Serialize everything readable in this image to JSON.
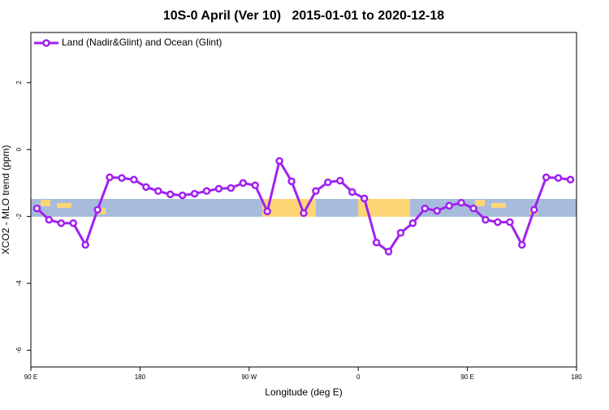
{
  "chart_data": {
    "type": "line",
    "title": "10S-0 April (Ver 10)   2015-01-01 to 2020-12-18",
    "x_label": "Longitude (deg E)",
    "y_label": "XCO2 - MLO trend (ppm)",
    "x": [
      95,
      105,
      115,
      125,
      135,
      145,
      155,
      165,
      175,
      185,
      195,
      205,
      215,
      225,
      235,
      245,
      255,
      265,
      275,
      285,
      295,
      305,
      315,
      325,
      335,
      345,
      355,
      365,
      375,
      385,
      395,
      405,
      415,
      425,
      435,
      445,
      455,
      465,
      475,
      485,
      495,
      505,
      515,
      525,
      535
    ],
    "series": [
      {
        "name": "Land (Nadir&Glint) and Ocean (Glint)",
        "color": "#a020f0",
        "values": [
          -1.76,
          -2.1,
          -2.2,
          -2.2,
          -2.85,
          -1.8,
          -0.83,
          -0.85,
          -0.9,
          -1.12,
          -1.24,
          -1.34,
          -1.37,
          -1.32,
          -1.24,
          -1.17,
          -1.15,
          -1.0,
          -1.07,
          -1.85,
          -0.34,
          -0.95,
          -1.9,
          -1.24,
          -0.98,
          -0.93,
          -1.27,
          -1.46,
          -2.78,
          -3.05,
          -2.49,
          -2.2,
          -1.76,
          -1.83,
          -1.68,
          -1.59,
          -1.76,
          -2.1,
          -2.17,
          -2.17,
          -2.85,
          -1.8,
          -0.83,
          -0.85,
          -0.9
        ]
      }
    ],
    "xlim": [
      90,
      540
    ],
    "xticks": [
      {
        "value": 90,
        "label": "90 E"
      },
      180,
      {
        "value": 270,
        "label": "90 W"
      },
      {
        "value": 360,
        "label": "0"
      },
      {
        "value": 450,
        "label": "90 E"
      },
      {
        "value": 540,
        "label": "180"
      }
    ],
    "ylim": [
      -6.5,
      3.5
    ],
    "yticks": [
      -6,
      -4,
      -2,
      0,
      2
    ],
    "legend": "topleft"
  }
}
